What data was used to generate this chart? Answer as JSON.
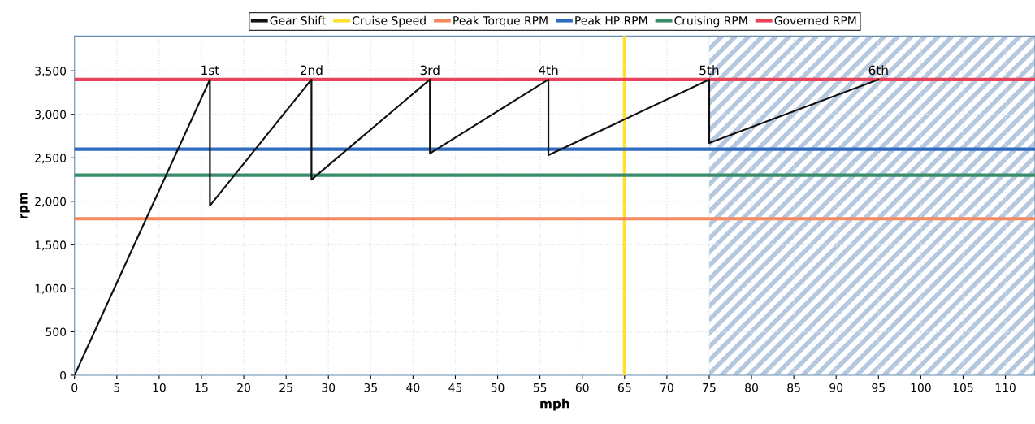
{
  "chart_data": {
    "type": "line",
    "xlabel": "mph",
    "ylabel": "rpm",
    "series": [
      {
        "name": "Gear Shift",
        "color": "#111111",
        "x": [
          0,
          16,
          16,
          28,
          28,
          42,
          42,
          56,
          56,
          75,
          75,
          95
        ],
        "values": [
          0,
          3400,
          1950,
          3400,
          2250,
          3400,
          2550,
          3400,
          2530,
          3400,
          2670,
          3400
        ]
      }
    ],
    "ref_lines": [
      {
        "axis": "x",
        "value": 65,
        "label": "Cruise Speed",
        "color": "#ffe02e"
      },
      {
        "axis": "y",
        "value": 1800,
        "label": "Peak Torque RPM",
        "color": "#f7895f"
      },
      {
        "axis": "y",
        "value": 2600,
        "label": "Peak HP RPM",
        "color": "#2f6cbf"
      },
      {
        "axis": "y",
        "value": 2300,
        "label": "Cruising RPM",
        "color": "#3a8c6a"
      },
      {
        "axis": "y",
        "value": 3400,
        "label": "Governed RPM",
        "color": "#e8435a"
      }
    ],
    "bands": [
      {
        "axis": "x",
        "from": 75,
        "to": 113.5,
        "color": "#b5c8e0"
      }
    ],
    "annotations": [
      {
        "text": "1st",
        "x": 16,
        "y": 3400
      },
      {
        "text": "2nd",
        "x": 28,
        "y": 3400
      },
      {
        "text": "3rd",
        "x": 42,
        "y": 3400
      },
      {
        "text": "4th",
        "x": 56,
        "y": 3400
      },
      {
        "text": "5th",
        "x": 75,
        "y": 3400
      },
      {
        "text": "6th",
        "x": 95,
        "y": 3400
      }
    ],
    "xlim": [
      0,
      113.5
    ],
    "ylim": [
      0,
      3900
    ],
    "xticks": [
      0,
      5,
      10,
      15,
      20,
      25,
      30,
      35,
      40,
      45,
      50,
      55,
      60,
      65,
      70,
      75,
      80,
      85,
      90,
      95,
      100,
      105,
      110
    ],
    "yticks": [
      0,
      500,
      {
        "value": 1000,
        "label": "1,000"
      },
      {
        "value": 1500,
        "label": "1,500"
      },
      {
        "value": 2000,
        "label": "2,000"
      },
      {
        "value": 2500,
        "label": "2,500"
      },
      {
        "value": 3000,
        "label": "3,000"
      },
      {
        "value": 3500,
        "label": "3,500"
      }
    ],
    "grid": true,
    "legend": "top",
    "line_style": "solid",
    "marker": "none"
  }
}
